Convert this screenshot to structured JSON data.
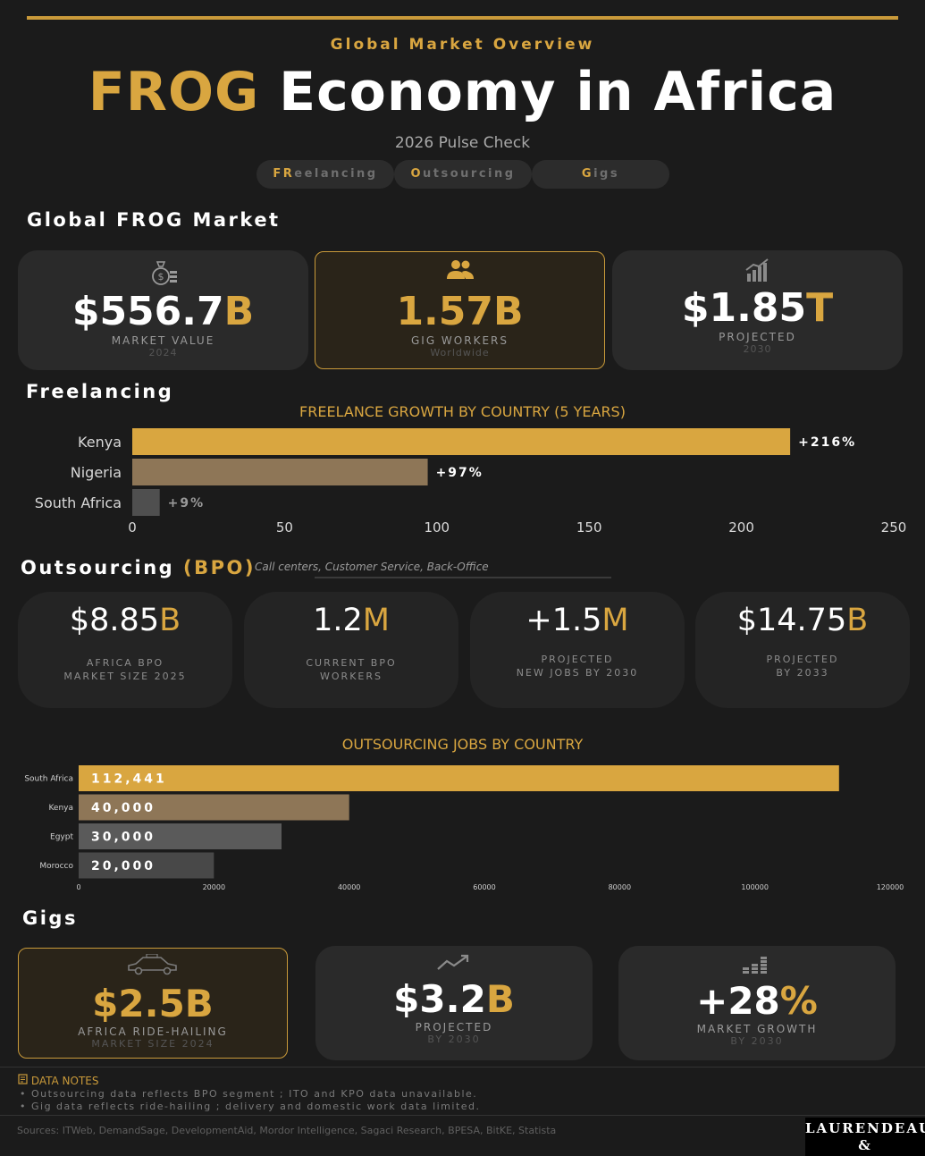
{
  "header": {
    "kicker": "Global Market Overview",
    "title_accent": "FROG",
    "title_rest": "Economy in Africa",
    "subtitle": "2026 Pulse Check",
    "pills": [
      {
        "accent": "FR",
        "rest": "eelancing"
      },
      {
        "accent": "O",
        "rest": "utsourcing"
      },
      {
        "accent": "G",
        "rest": "igs"
      }
    ]
  },
  "global": {
    "heading": "Global FROG Market",
    "cards": [
      {
        "icon": "money-bag-icon",
        "value": "$556.7",
        "suffix": "B",
        "label": "MARKET VALUE",
        "sub": "2024"
      },
      {
        "icon": "people-icon",
        "value": "1.57B",
        "suffix": "",
        "label": "GIG WORKERS",
        "sub": "Worldwide"
      },
      {
        "icon": "growth-chart-icon",
        "value": "$1.85",
        "suffix": "T",
        "label": "PROJECTED",
        "sub": "2030"
      }
    ]
  },
  "freelancing": {
    "heading": "Freelancing"
  },
  "outsourcing": {
    "heading": "Outsourcing",
    "heading_accent": "(BPO)",
    "note": "Call centers, Customer Service, Back-Office",
    "cards": [
      {
        "value": "$8.85",
        "suffix": "B",
        "label1": "AFRICA BPO",
        "label2": "MARKET SIZE 2025"
      },
      {
        "value": "1.2",
        "suffix": "M",
        "label1": "CURRENT BPO",
        "label2": "WORKERS"
      },
      {
        "value": "+1.5",
        "suffix": "M",
        "label1": "PROJECTED",
        "label2": "NEW JOBS BY 2030"
      },
      {
        "value": "$14.75",
        "suffix": "B",
        "label1": "PROJECTED",
        "label2": "BY 2033"
      }
    ]
  },
  "gigs": {
    "heading": "Gigs",
    "cards": [
      {
        "icon": "taxi-icon",
        "value": "$2.5B",
        "suffix": "",
        "label": "AFRICA RIDE-HAILING",
        "sub": "MARKET SIZE 2024"
      },
      {
        "icon": "trend-up-icon",
        "value": "$3.2",
        "suffix": "B",
        "label": "PROJECTED",
        "sub": "BY 2030"
      },
      {
        "icon": "coins-icon",
        "value": "+28",
        "suffix": "%",
        "label": "MARKET GROWTH",
        "sub": "BY 2030"
      }
    ]
  },
  "notes": {
    "title": "DATA NOTES",
    "items": [
      "• Outsourcing data reflects BPO segment ; ITO and KPO data unavailable.",
      "• Gig data reflects ride-hailing ; delivery and domestic work data limited."
    ],
    "sources": "Sources: ITWeb, DemandSage, DevelopmentAid, Mordor Intelligence, Sagaci Research, BPESA, BitKE, Statista"
  },
  "logo": {
    "line1": "LAURENDEAU",
    "line2": "& ASSOCIATES"
  },
  "chart_data": [
    {
      "type": "bar",
      "orientation": "horizontal",
      "title": "FREELANCE GROWTH BY COUNTRY (5 YEARS)",
      "categories": [
        "Kenya",
        "Nigeria",
        "South Africa"
      ],
      "values": [
        216,
        97,
        9
      ],
      "value_labels": [
        "+216%",
        "+97%",
        "+9%"
      ],
      "colors": [
        "#d9a640",
        "#8e7657",
        "#4f4f4f"
      ],
      "xlim": [
        0,
        250
      ],
      "xticks": [
        0,
        50,
        100,
        150,
        200,
        250
      ],
      "grid": false
    },
    {
      "type": "bar",
      "orientation": "horizontal",
      "title": "OUTSOURCING JOBS BY COUNTRY",
      "categories": [
        "South Africa",
        "Kenya",
        "Egypt",
        "Morocco"
      ],
      "values": [
        112441,
        40000,
        30000,
        20000
      ],
      "value_labels": [
        "112,441",
        "40,000",
        "30,000",
        "20,000"
      ],
      "colors": [
        "#d9a640",
        "#8e7657",
        "#5a5a5a",
        "#484848"
      ],
      "xlim": [
        0,
        120000
      ],
      "xticks": [
        0,
        20000,
        40000,
        60000,
        80000,
        100000,
        120000
      ],
      "grid": false
    }
  ]
}
